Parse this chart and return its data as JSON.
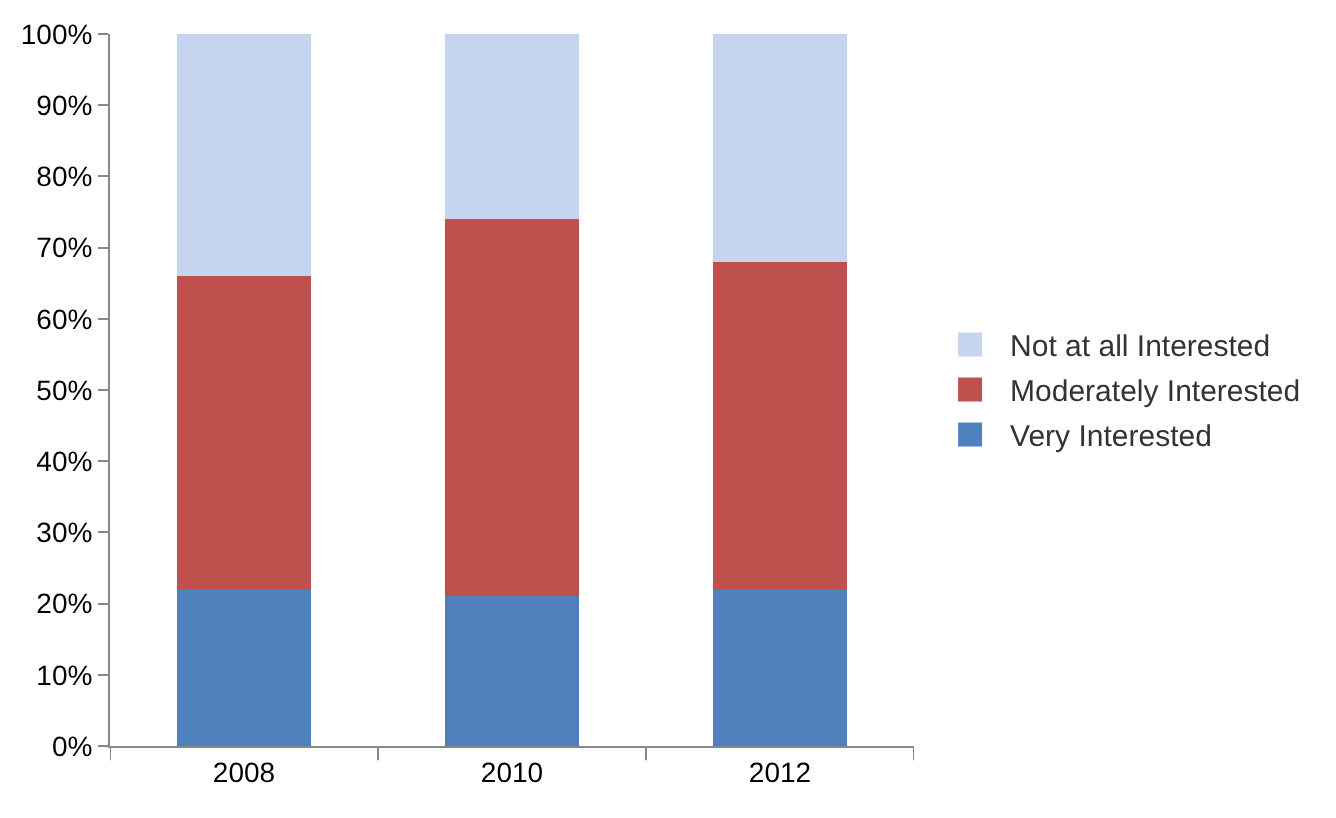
{
  "chart_data": {
    "type": "bar",
    "stacked": true,
    "categories": [
      "2008",
      "2010",
      "2012"
    ],
    "series": [
      {
        "name": "Very Interested",
        "color": "#4f81bd",
        "values": [
          22,
          21,
          22
        ]
      },
      {
        "name": "Moderately Interested",
        "color": "#c0504d",
        "values": [
          44,
          53,
          46
        ]
      },
      {
        "name": "Not at all Interested",
        "color": "#c6d5ef",
        "values": [
          34,
          26,
          32
        ]
      }
    ],
    "ylim": [
      0,
      100
    ],
    "yticks": [
      {
        "value": 0,
        "label": "0%"
      },
      {
        "value": 10,
        "label": "10%"
      },
      {
        "value": 20,
        "label": "20%"
      },
      {
        "value": 30,
        "label": "30%"
      },
      {
        "value": 40,
        "label": "40%"
      },
      {
        "value": 50,
        "label": "50%"
      },
      {
        "value": 60,
        "label": "60%"
      },
      {
        "value": 70,
        "label": "70%"
      },
      {
        "value": 80,
        "label": "80%"
      },
      {
        "value": 90,
        "label": "90%"
      },
      {
        "value": 100,
        "label": "100%"
      }
    ],
    "grid": false,
    "legend": "right"
  }
}
